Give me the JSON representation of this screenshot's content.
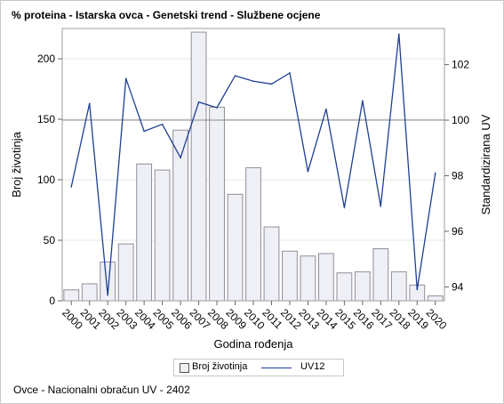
{
  "chart_data": {
    "type": "bar",
    "title": "% proteina - Istarska ovca - Genetski trend - Službene ocjene",
    "xlabel": "Godina rođenja",
    "ylabel": "Broj životinja",
    "y2label": "Standardizirana UV",
    "categories": [
      "2000",
      "2001",
      "2002",
      "2003",
      "2004",
      "2005",
      "2006",
      "2007",
      "2008",
      "2009",
      "2010",
      "2011",
      "2012",
      "2013",
      "2014",
      "2015",
      "2016",
      "2017",
      "2018",
      "2019",
      "2020"
    ],
    "series": [
      {
        "name": "Broj životinja",
        "type": "bar",
        "axis": "left",
        "color": "#eef0f5",
        "values": [
          9,
          14,
          32,
          47,
          113,
          108,
          141,
          222,
          160,
          88,
          110,
          61,
          41,
          37,
          39,
          23,
          24,
          43,
          24,
          13,
          4
        ]
      },
      {
        "name": "UV12",
        "type": "line",
        "axis": "right",
        "color": "#1f3f91",
        "values": [
          97.6,
          100.6,
          93.7,
          101.5,
          99.6,
          99.85,
          98.65,
          100.65,
          100.45,
          101.6,
          101.4,
          101.3,
          101.7,
          98.15,
          100.4,
          96.85,
          100.7,
          96.9,
          103.1,
          93.9,
          98.1
        ]
      }
    ],
    "ylim": [
      0,
      225
    ],
    "yticks": [
      0,
      50,
      100,
      150,
      200
    ],
    "y2lim": [
      93.5,
      103.3
    ],
    "y2ticks": [
      94,
      96,
      98,
      100,
      102
    ],
    "y2_reference": 100,
    "grid": true,
    "legend_position": "bottom"
  },
  "footnote": "Ovce - Nacionalni obračun UV - 2402"
}
